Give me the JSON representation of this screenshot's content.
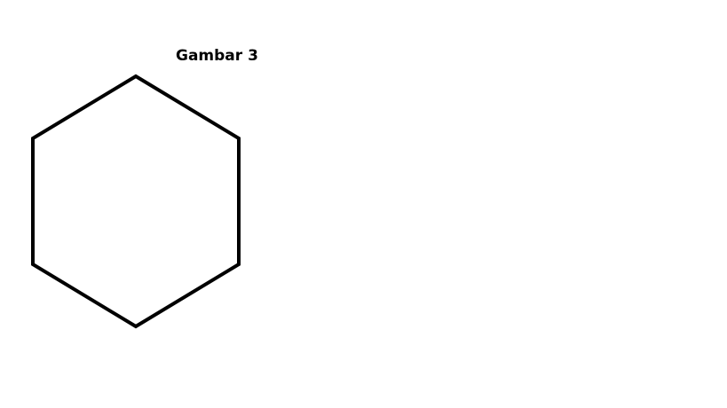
{
  "caption": "Gambar 3",
  "shape": {
    "type": "hexagon",
    "stroke_color": "#000000",
    "fill": "none"
  }
}
